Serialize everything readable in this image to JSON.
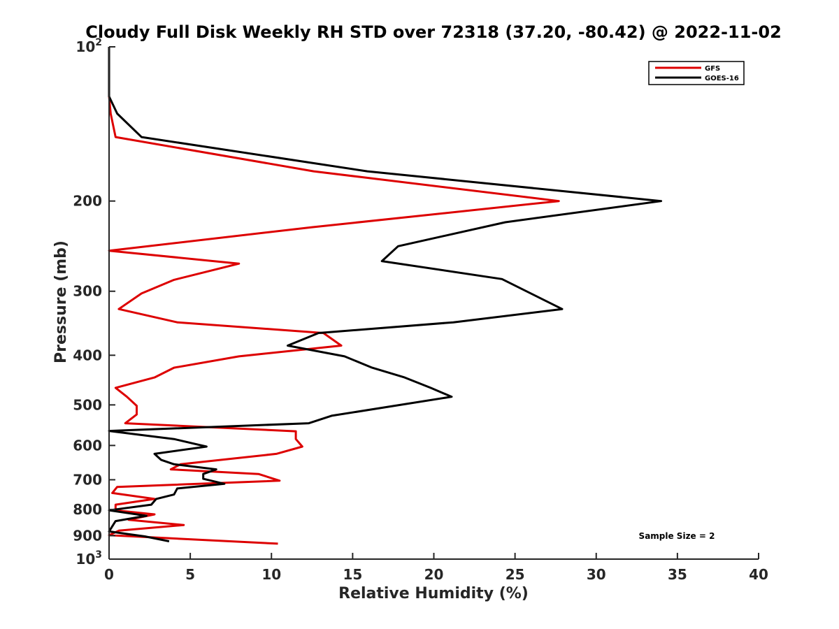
{
  "chart_data": {
    "type": "line",
    "title": "Cloudy Full Disk Weekly RH STD over 72318 (37.20, -80.42) @ 2022-11-02",
    "xlabel": "Relative Humidity (%)",
    "ylabel": "Pressure (mb)",
    "xlim": [
      0,
      40
    ],
    "ylim": [
      100,
      1000
    ],
    "yscale": "log",
    "yreversed": true,
    "x_ticks": [
      {
        "value": 0,
        "label": "0"
      },
      {
        "value": 5,
        "label": "5"
      },
      {
        "value": 10,
        "label": "10"
      },
      {
        "value": 15,
        "label": "15"
      },
      {
        "value": 20,
        "label": "20"
      },
      {
        "value": 25,
        "label": "25"
      },
      {
        "value": 30,
        "label": "30"
      },
      {
        "value": 35,
        "label": "35"
      },
      {
        "value": 40,
        "label": "40"
      }
    ],
    "y_ticks": [
      {
        "value": 100,
        "base": "10",
        "exp": "2"
      },
      {
        "value": 200,
        "label": "200"
      },
      {
        "value": 300,
        "label": "300"
      },
      {
        "value": 400,
        "label": "400"
      },
      {
        "value": 500,
        "label": "500"
      },
      {
        "value": 600,
        "label": "600"
      },
      {
        "value": 700,
        "label": "700"
      },
      {
        "value": 800,
        "label": "800"
      },
      {
        "value": 900,
        "label": "900"
      },
      {
        "value": 1000,
        "base": "10",
        "exp": "3"
      }
    ],
    "legend": {
      "position": "top-right",
      "entries": [
        "GFS",
        "GOES-16"
      ]
    },
    "annotation": "Sample Size = 2",
    "series": [
      {
        "name": "GFS",
        "color": "#dd0000",
        "points": [
          [
            0,
            100
          ],
          [
            0,
            125
          ],
          [
            0.1,
            135
          ],
          [
            0.4,
            150
          ],
          [
            12.6,
            175
          ],
          [
            27.7,
            200
          ],
          [
            12.5,
            225
          ],
          [
            0,
            250
          ],
          [
            8.0,
            265
          ],
          [
            4.0,
            285
          ],
          [
            2.0,
            303
          ],
          [
            0.6,
            325
          ],
          [
            4.2,
            345
          ],
          [
            13.2,
            362
          ],
          [
            14.3,
            383
          ],
          [
            8.0,
            402
          ],
          [
            4.0,
            423
          ],
          [
            2.8,
            442
          ],
          [
            0.4,
            463
          ],
          [
            1.1,
            482
          ],
          [
            1.7,
            502
          ],
          [
            1.7,
            522
          ],
          [
            1.0,
            543
          ],
          [
            11.5,
            563
          ],
          [
            11.5,
            583
          ],
          [
            11.9,
            603
          ],
          [
            10.3,
            623
          ],
          [
            4.4,
            653
          ],
          [
            3.8,
            668
          ],
          [
            9.2,
            682
          ],
          [
            10.5,
            703
          ],
          [
            0.5,
            723
          ],
          [
            0.2,
            743
          ],
          [
            2.8,
            763
          ],
          [
            0.4,
            783
          ],
          [
            0.4,
            803
          ],
          [
            2.8,
            818
          ],
          [
            1.2,
            838
          ],
          [
            4.6,
            858
          ],
          [
            0.6,
            880
          ],
          [
            0,
            898
          ],
          [
            10.4,
            933
          ]
        ]
      },
      {
        "name": "GOES-16",
        "color": "#000000",
        "points": [
          [
            0,
            100
          ],
          [
            0,
            125
          ],
          [
            0.5,
            135
          ],
          [
            2.0,
            150
          ],
          [
            15.9,
            175
          ],
          [
            34.0,
            200
          ],
          [
            24.4,
            220
          ],
          [
            17.8,
            245
          ],
          [
            16.8,
            262
          ],
          [
            24.2,
            284
          ],
          [
            27.9,
            325
          ],
          [
            21.2,
            345
          ],
          [
            12.9,
            362
          ],
          [
            11.0,
            383
          ],
          [
            14.5,
            402
          ],
          [
            16.2,
            423
          ],
          [
            18.2,
            442
          ],
          [
            19.8,
            463
          ],
          [
            21.1,
            482
          ],
          [
            13.7,
            525
          ],
          [
            12.3,
            543
          ],
          [
            0,
            562
          ],
          [
            4.0,
            583
          ],
          [
            6.0,
            603
          ],
          [
            2.8,
            623
          ],
          [
            3.2,
            640
          ],
          [
            4.0,
            653
          ],
          [
            6.6,
            668
          ],
          [
            5.8,
            682
          ],
          [
            5.8,
            697
          ],
          [
            7.1,
            713
          ],
          [
            4.2,
            728
          ],
          [
            4.0,
            748
          ],
          [
            2.9,
            763
          ],
          [
            2.6,
            783
          ],
          [
            0,
            803
          ],
          [
            2.3,
            823
          ],
          [
            0.4,
            843
          ],
          [
            0,
            883
          ],
          [
            2.2,
            903
          ],
          [
            3.7,
            923
          ]
        ]
      }
    ]
  }
}
